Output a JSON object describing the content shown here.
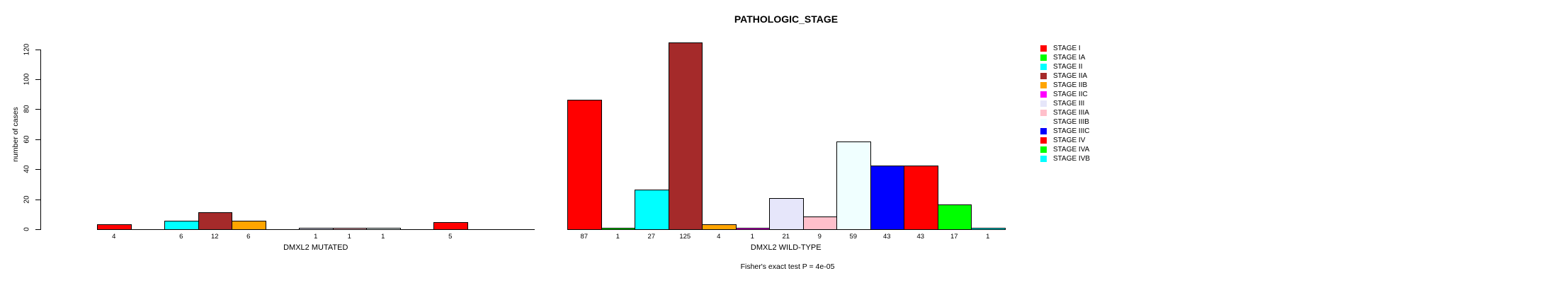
{
  "chart_data": {
    "type": "bar",
    "title": "PATHOLOGIC_STAGE",
    "ylabel": "number of cases",
    "xlabel": "",
    "annotation": "Fisher's exact test P = 4e-05",
    "yticks": [
      0,
      20,
      40,
      60,
      80,
      100,
      120
    ],
    "ylim": [
      0,
      125
    ],
    "grid": false,
    "legend_position": "right",
    "categories": [
      "STAGE I",
      "STAGE IA",
      "STAGE II",
      "STAGE IIA",
      "STAGE IIB",
      "STAGE IIC",
      "STAGE III",
      "STAGE IIIA",
      "STAGE IIIB",
      "STAGE IIIC",
      "STAGE IV",
      "STAGE IVA",
      "STAGE IVB"
    ],
    "colors": [
      "#FF0000",
      "#00FF00",
      "#00FFFF",
      "#A52A2A",
      "#FFA500",
      "#FF00FF",
      "#E6E6FA",
      "#FFC0CB",
      "#F0FFFF",
      "#0000FF",
      "#FF0000",
      "#00FF00",
      "#00FFFF"
    ],
    "series": [
      {
        "name": "DMXL2 MUTATED",
        "values": [
          4,
          0,
          6,
          12,
          6,
          0,
          1,
          1,
          1,
          0,
          5,
          0,
          0
        ]
      },
      {
        "name": "DMXL2 WILD-TYPE",
        "values": [
          87,
          1,
          27,
          125,
          4,
          1,
          21,
          9,
          59,
          43,
          43,
          17,
          1
        ]
      }
    ],
    "bar_border_color": "#000000",
    "axis_color": "#000000",
    "text_color": "#000000"
  }
}
